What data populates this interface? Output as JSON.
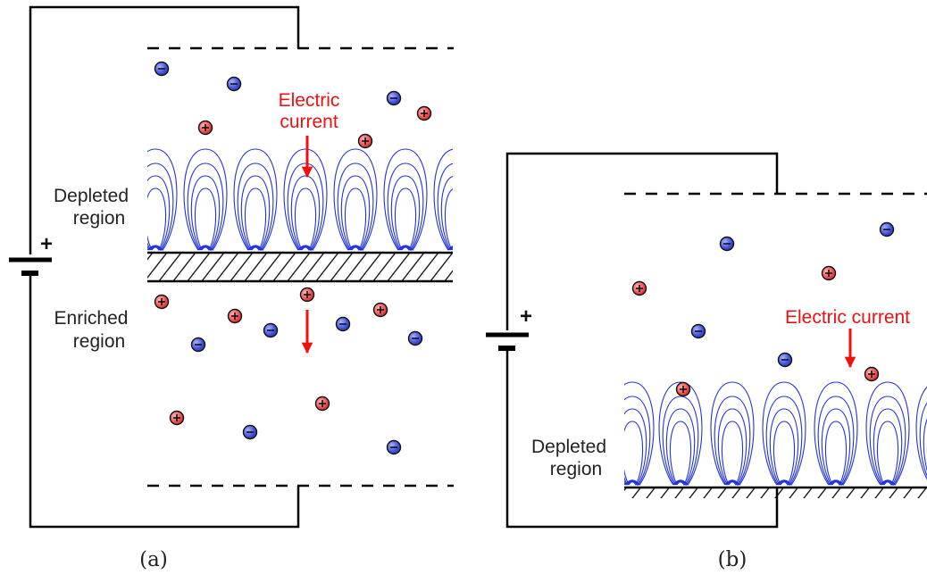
{
  "panel_a": {
    "caption": "(a)",
    "battery_sign": "+",
    "label_depleted": [
      "Depleted",
      "region"
    ],
    "label_enriched": [
      "Enriched",
      "region"
    ],
    "current_label": [
      "Electric",
      "current"
    ],
    "ion_symbols": {
      "positive": "+",
      "negative": "−"
    }
  },
  "panel_b": {
    "caption": "(b)",
    "battery_sign": "+",
    "label_depleted": [
      "Depleted",
      "region"
    ],
    "current_label": "Electric current"
  },
  "colors": {
    "wire": "#000000",
    "flow_lines": "#2233dd",
    "current_arrow": "#ee1111",
    "positive_ion": "#ee5555",
    "negative_ion": "#4455dd",
    "text": "#222222"
  }
}
